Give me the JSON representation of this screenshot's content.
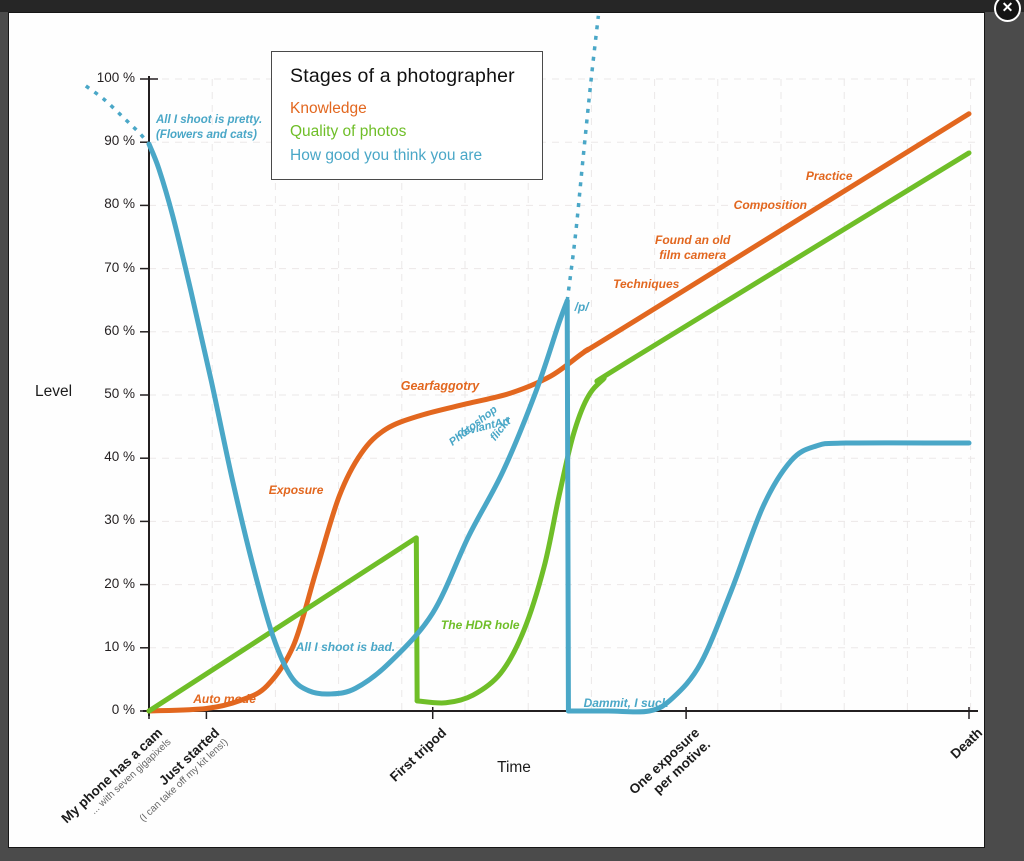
{
  "overlay": {
    "close_label": "✕"
  },
  "chart_data": {
    "type": "line",
    "title": "Stages of a photographer",
    "xlabel": "Time",
    "ylabel": "Level",
    "ylim": [
      0,
      100
    ],
    "grid": "dashed square grid",
    "legend_position": "top-left box",
    "palette": {
      "orange": "#e2671f",
      "green": "#6fbe28",
      "blue": "#4aa7c7"
    },
    "y_ticks": [
      {
        "v": 0,
        "label": "0 %"
      },
      {
        "v": 10,
        "label": "10 %"
      },
      {
        "v": 20,
        "label": "20 %"
      },
      {
        "v": 30,
        "label": "30 %"
      },
      {
        "v": 40,
        "label": "40 %"
      },
      {
        "v": 50,
        "label": "50 %"
      },
      {
        "v": 60,
        "label": "60 %"
      },
      {
        "v": 70,
        "label": "70 %"
      },
      {
        "v": 80,
        "label": "80 %"
      },
      {
        "v": 90,
        "label": "90 %"
      },
      {
        "v": 100,
        "label": "100 %"
      }
    ],
    "x_ticks": [
      {
        "t": 0,
        "label_lines": [
          "My phone has a cam"
        ],
        "sub_lines": [
          "... with seven gigapixels"
        ]
      },
      {
        "t": 7,
        "label_lines": [
          "Just started"
        ],
        "sub_lines": [
          "(I can take off my kit lens!)"
        ]
      },
      {
        "t": 34.6,
        "label_lines": [
          "First tripod"
        ],
        "sub_lines": []
      },
      {
        "t": 65.5,
        "label_lines": [
          "One exposure",
          "per motive."
        ],
        "sub_lines": []
      },
      {
        "t": 100,
        "label_lines": [
          "Death"
        ],
        "sub_lines": []
      }
    ],
    "series": [
      {
        "name": "Knowledge",
        "color": "#e2671f",
        "segments": [
          {
            "smooth": true,
            "dotted": false,
            "points": [
              [
                0,
                0
              ],
              [
                7,
                0.4
              ],
              [
                11.2,
                1.7
              ],
              [
                14.4,
                4
              ],
              [
                17.6,
                10.3
              ],
              [
                20.4,
                22.2
              ],
              [
                23.2,
                34
              ],
              [
                25.9,
                40.8
              ],
              [
                28.9,
                44.6
              ],
              [
                33.2,
                46.8
              ],
              [
                38.7,
                48.6
              ],
              [
                44.1,
                50.3
              ],
              [
                49,
                53
              ],
              [
                53.3,
                57
              ],
              [
                57.6,
                60.4
              ],
              [
                100,
                94.5
              ]
            ]
          }
        ]
      },
      {
        "name": "Quality of photos",
        "color": "#6fbe28",
        "segments": [
          {
            "smooth": false,
            "dotted": false,
            "points": [
              [
                0,
                0
              ],
              [
                32.6,
                27.4
              ],
              [
                32.7,
                1.6
              ]
            ]
          },
          {
            "smooth": true,
            "dotted": false,
            "points": [
              [
                32.7,
                1.6
              ],
              [
                36.2,
                1.3
              ],
              [
                39.5,
                2.5
              ],
              [
                42.9,
                6
              ],
              [
                45.7,
                12.7
              ],
              [
                48.2,
                22.9
              ],
              [
                50,
                34
              ],
              [
                51.7,
                43.5
              ],
              [
                53.4,
                49.4
              ],
              [
                55.4,
                52.5
              ],
              [
                58.8,
                55.6
              ],
              [
                100,
                88.3
              ]
            ]
          }
        ]
      },
      {
        "name": "How good you think you are",
        "color": "#4aa7c7",
        "segments": [
          {
            "smooth": true,
            "dotted": true,
            "points": [
              [
                -7.7,
                98.9
              ],
              [
                -5.5,
                96.8
              ],
              [
                -3.2,
                94
              ],
              [
                -1.2,
                91.5
              ],
              [
                0,
                89.7
              ]
            ]
          },
          {
            "smooth": true,
            "dotted": false,
            "points": [
              [
                0,
                89.7
              ],
              [
                1.2,
                85.8
              ],
              [
                2.9,
                78.3
              ],
              [
                5.1,
                66.5
              ],
              [
                7.6,
                52.2
              ],
              [
                10.2,
                36.4
              ],
              [
                12.7,
                22.9
              ],
              [
                15.1,
                11.9
              ],
              [
                17.3,
                5.5
              ],
              [
                19.5,
                3.2
              ],
              [
                22.2,
                2.7
              ],
              [
                25.2,
                3.6
              ],
              [
                29.3,
                7.6
              ],
              [
                34.6,
                15.5
              ],
              [
                39,
                27.7
              ],
              [
                43.2,
                38
              ],
              [
                47.2,
                50.6
              ],
              [
                50,
                61.4
              ],
              [
                51,
                64.9
              ]
            ]
          },
          {
            "smooth": false,
            "dotted": false,
            "points": [
              [
                51,
                64.9
              ],
              [
                51.15,
                0
              ]
            ]
          },
          {
            "smooth": true,
            "dotted": false,
            "points": [
              [
                51.15,
                0
              ],
              [
                56,
                0
              ],
              [
                61,
                0
              ],
              [
                63.9,
                2.1
              ],
              [
                67.3,
                7.6
              ],
              [
                71,
                19
              ],
              [
                74.9,
                32.4
              ],
              [
                78.3,
                39.6
              ],
              [
                81.3,
                41.9
              ],
              [
                85,
                42.4
              ],
              [
                100,
                42.4
              ]
            ]
          },
          {
            "smooth": true,
            "dotted": true,
            "points": [
              [
                51,
                64.9
              ],
              [
                52,
                75.2
              ],
              [
                52.9,
                87
              ],
              [
                53.9,
                99.7
              ],
              [
                54.8,
                110
              ]
            ]
          }
        ]
      }
    ],
    "annotations": [
      {
        "text": "All I shoot is pretty.\n(Flowers and cats)",
        "c": "blue",
        "t": 0.85,
        "v": 94.6,
        "size": 11.5
      },
      {
        "text": "Auto mode",
        "c": "orange",
        "t": 5.4,
        "v": 3.0,
        "size": 12
      },
      {
        "text": "Exposure",
        "c": "orange",
        "t": 14.6,
        "v": 36.1,
        "size": 12
      },
      {
        "text": "All I shoot is bad.",
        "c": "blue",
        "t": 17.9,
        "v": 11.2,
        "size": 12
      },
      {
        "text": "Gearfaggotry",
        "c": "orange",
        "t": 30.7,
        "v": 52.5,
        "size": 12.5
      },
      {
        "text": "Photoshop",
        "c": "blue",
        "t": 36.3,
        "v": 43.0,
        "size": 11,
        "rotate": -38
      },
      {
        "text": "deviantArt",
        "c": "blue",
        "t": 37.4,
        "v": 44.8,
        "size": 11,
        "rotate": -14
      },
      {
        "text": "flickr",
        "c": "blue",
        "t": 41.3,
        "v": 43.5,
        "size": 11,
        "rotate": -52
      },
      {
        "text": "The HDR hole",
        "c": "green",
        "t": 35.6,
        "v": 14.7,
        "size": 12
      },
      {
        "text": "/p/",
        "c": "blue",
        "t": 51.9,
        "v": 65.0,
        "size": 12
      },
      {
        "text": "Dammit, I suck",
        "c": "blue",
        "t": 53.0,
        "v": 2.4,
        "size": 12
      },
      {
        "text": "Techniques",
        "c": "orange",
        "t": 56.6,
        "v": 68.7,
        "size": 12
      },
      {
        "text": "Found an old\nfilm camera",
        "c": "orange",
        "t": 66.3,
        "v": 75.6,
        "size": 12,
        "align": "center"
      },
      {
        "text": "Composition",
        "c": "orange",
        "t": 71.3,
        "v": 81.2,
        "size": 12
      },
      {
        "text": "Practice",
        "c": "orange",
        "t": 80.1,
        "v": 85.8,
        "size": 12
      }
    ]
  }
}
